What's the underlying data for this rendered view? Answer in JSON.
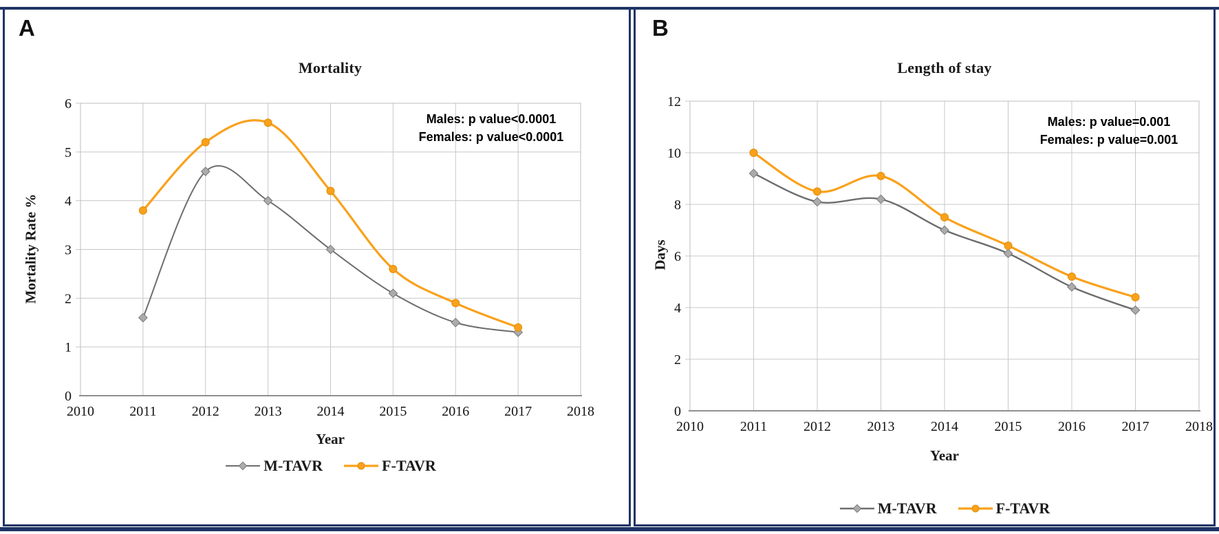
{
  "figure": {
    "background": "#ffffff",
    "frame_color": "#1E3465",
    "panels": [
      {
        "panel_label": "A",
        "title": "Mortality",
        "annotation_line1": "Males: p value<0.0001",
        "annotation_line2": "Females: p value<0.0001",
        "x_axis_label": "Year",
        "y_axis_label": "Mortality Rate %"
      },
      {
        "panel_label": "B",
        "title": "Length of stay",
        "annotation_line1": "Males: p value=0.001",
        "annotation_line2": "Females: p value=0.001",
        "x_axis_label": "Year",
        "y_axis_label": "Days"
      }
    ]
  },
  "chart_data": [
    {
      "type": "line",
      "title": "Mortality",
      "xlabel": "Year",
      "ylabel": "Mortality Rate %",
      "xlim": [
        2010,
        2018
      ],
      "ylim": [
        0,
        6
      ],
      "x_ticks": [
        2010,
        2011,
        2012,
        2013,
        2014,
        2015,
        2016,
        2017,
        2018
      ],
      "y_ticks": [
        0,
        1,
        2,
        3,
        4,
        5,
        6
      ],
      "categories": [
        2011,
        2012,
        2013,
        2014,
        2015,
        2016,
        2017
      ],
      "series": [
        {
          "name": "M-TAVR",
          "values": [
            1.6,
            4.6,
            4.0,
            3.0,
            2.1,
            1.5,
            1.3
          ],
          "color": "#6D6D6D",
          "line_width": 2,
          "marker": "diamond",
          "marker_fill": "#ABABAB",
          "marker_stroke": "#7A7A7A"
        },
        {
          "name": "F-TAVR",
          "values": [
            3.8,
            5.2,
            5.6,
            4.2,
            2.6,
            1.9,
            1.4
          ],
          "color": "#F9A11B",
          "line_width": 3.2,
          "marker": "circle",
          "marker_fill": "#F9A11B",
          "marker_stroke": "#E08E08"
        }
      ],
      "annotations": [
        "Males: p value<0.0001",
        "Females: p value<0.0001"
      ],
      "grid": true,
      "grid_color": "#C8C8C8",
      "plot_border_color": "#BDBDBD",
      "axis_color": "#8F8F8F",
      "smooth_lines": true,
      "legend_position": "bottom"
    },
    {
      "type": "line",
      "title": "Length of stay",
      "xlabel": "Year",
      "ylabel": "Days",
      "xlim": [
        2010,
        2018
      ],
      "ylim": [
        0,
        12
      ],
      "x_ticks": [
        2010,
        2011,
        2012,
        2013,
        2014,
        2015,
        2016,
        2017,
        2018
      ],
      "y_ticks": [
        0,
        2,
        4,
        6,
        8,
        10,
        12
      ],
      "categories": [
        2011,
        2012,
        2013,
        2014,
        2015,
        2016,
        2017
      ],
      "series": [
        {
          "name": "M-TAVR",
          "values": [
            9.2,
            8.1,
            8.2,
            7.0,
            6.1,
            4.8,
            3.9
          ],
          "color": "#6D6D6D",
          "line_width": 2.4,
          "marker": "diamond",
          "marker_fill": "#ABABAB",
          "marker_stroke": "#7A7A7A"
        },
        {
          "name": "F-TAVR",
          "values": [
            10.0,
            8.5,
            9.1,
            7.5,
            6.4,
            5.2,
            4.4
          ],
          "color": "#F9A11B",
          "line_width": 3.2,
          "marker": "circle",
          "marker_fill": "#F9A11B",
          "marker_stroke": "#E08E08"
        }
      ],
      "annotations": [
        "Males: p value=0.001",
        "Females: p value=0.001"
      ],
      "grid": true,
      "grid_color": "#C8C8C8",
      "plot_border_color": "#BDBDBD",
      "axis_color": "#8F8F8F",
      "smooth_lines": true,
      "legend_position": "bottom"
    }
  ]
}
